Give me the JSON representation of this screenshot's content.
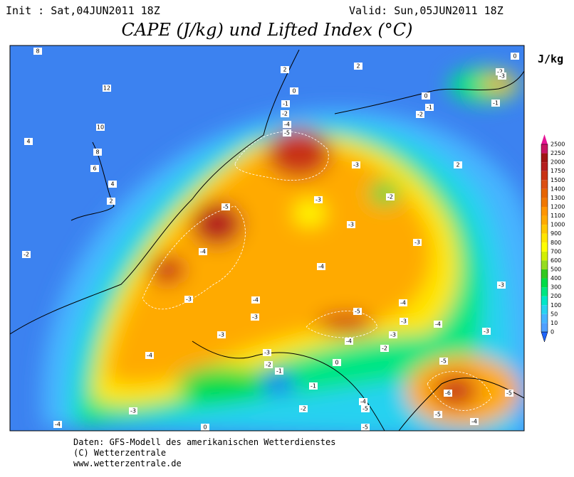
{
  "header": {
    "init": "Init : Sat,04JUN2011 18Z",
    "valid": "Valid: Sun,05JUN2011 18Z",
    "title": "CAPE (J/kg) und Lifted Index (°C)",
    "unit": "J/kg"
  },
  "colorbar": {
    "levels": [
      0,
      10,
      50,
      100,
      200,
      300,
      400,
      500,
      600,
      700,
      800,
      900,
      1000,
      1100,
      1200,
      1300,
      1400,
      1500,
      1750,
      2000,
      2250,
      2500
    ],
    "colors": [
      "#50a0ff",
      "#46b4ff",
      "#28d2f0",
      "#00e6c8",
      "#00e682",
      "#00dc46",
      "#32c81e",
      "#96dc1e",
      "#d2f000",
      "#ffff00",
      "#ffe600",
      "#ffc800",
      "#ffaa00",
      "#ff9600",
      "#f07800",
      "#e66400",
      "#dc5014",
      "#c83214",
      "#b41e1e",
      "#a01414",
      "#c81464",
      "#e61496"
    ]
  },
  "contour_labels": [
    8,
    12,
    10,
    8,
    6,
    4,
    2,
    4,
    -2,
    2,
    2,
    0,
    -1,
    -2,
    -4,
    -5,
    0,
    -1,
    -2,
    -2,
    -3,
    -1,
    0,
    2,
    -3,
    -2,
    -3,
    -3,
    -5,
    -4,
    -3,
    -4,
    -3,
    -4,
    -3,
    -4,
    -5,
    -3,
    -4,
    -3,
    -3,
    -3,
    -3,
    -4,
    -4,
    -3,
    -2,
    -2,
    -1,
    0,
    -5,
    -1,
    -6,
    -5,
    -3,
    -2,
    -4,
    -5,
    -5,
    -4,
    -5,
    -4,
    0
  ],
  "footer": [
    "Daten: GFS-Modell des amerikanischen Wetterdienstes",
    "(C) Wetterzentrale",
    "www.wetterzentrale.de"
  ]
}
